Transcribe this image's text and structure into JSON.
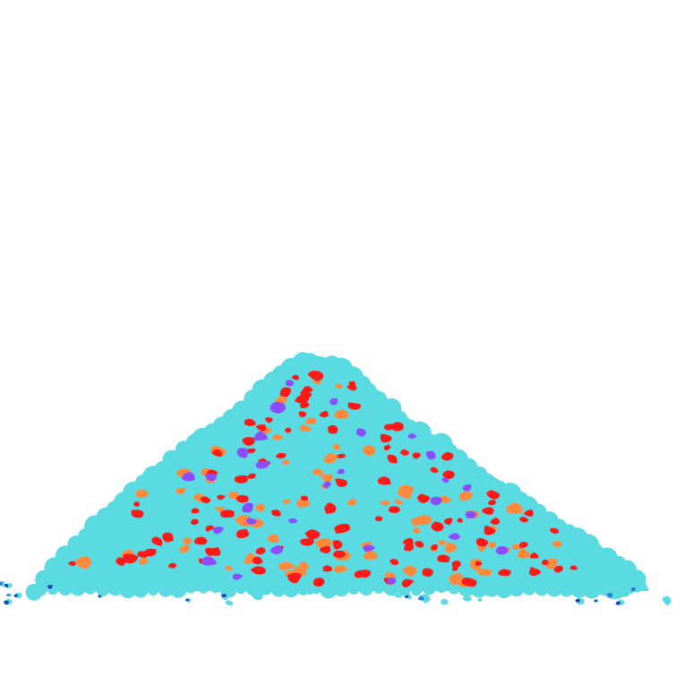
{
  "scene": {
    "subject": "pile-of-colored-gravel",
    "colors": {
      "background": "#ffffff",
      "pile": "#5adbe2",
      "red": "#ff1a1a",
      "orange": "#ff8a3d",
      "purple": "#8a4dff",
      "dark_blue": "#1a3fa8",
      "mid_blue": "#2f7fd6"
    },
    "seed": 7,
    "speck_counts": {
      "red": 120,
      "orange": 80,
      "purple": 28
    }
  }
}
